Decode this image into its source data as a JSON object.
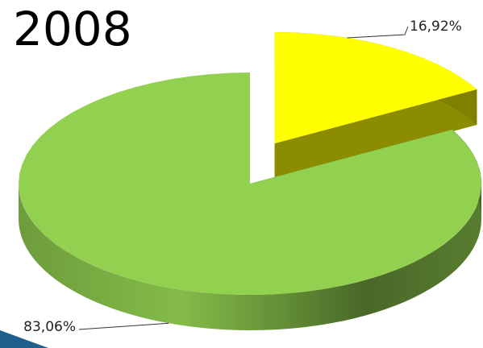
{
  "chart_data": {
    "type": "pie",
    "title": "2008",
    "categories": [
      null,
      null
    ],
    "values": [
      16.92,
      83.06
    ],
    "value_labels": [
      "16,92%",
      "83,06%"
    ],
    "colors": [
      "#ffff00",
      "#92d050"
    ]
  }
}
